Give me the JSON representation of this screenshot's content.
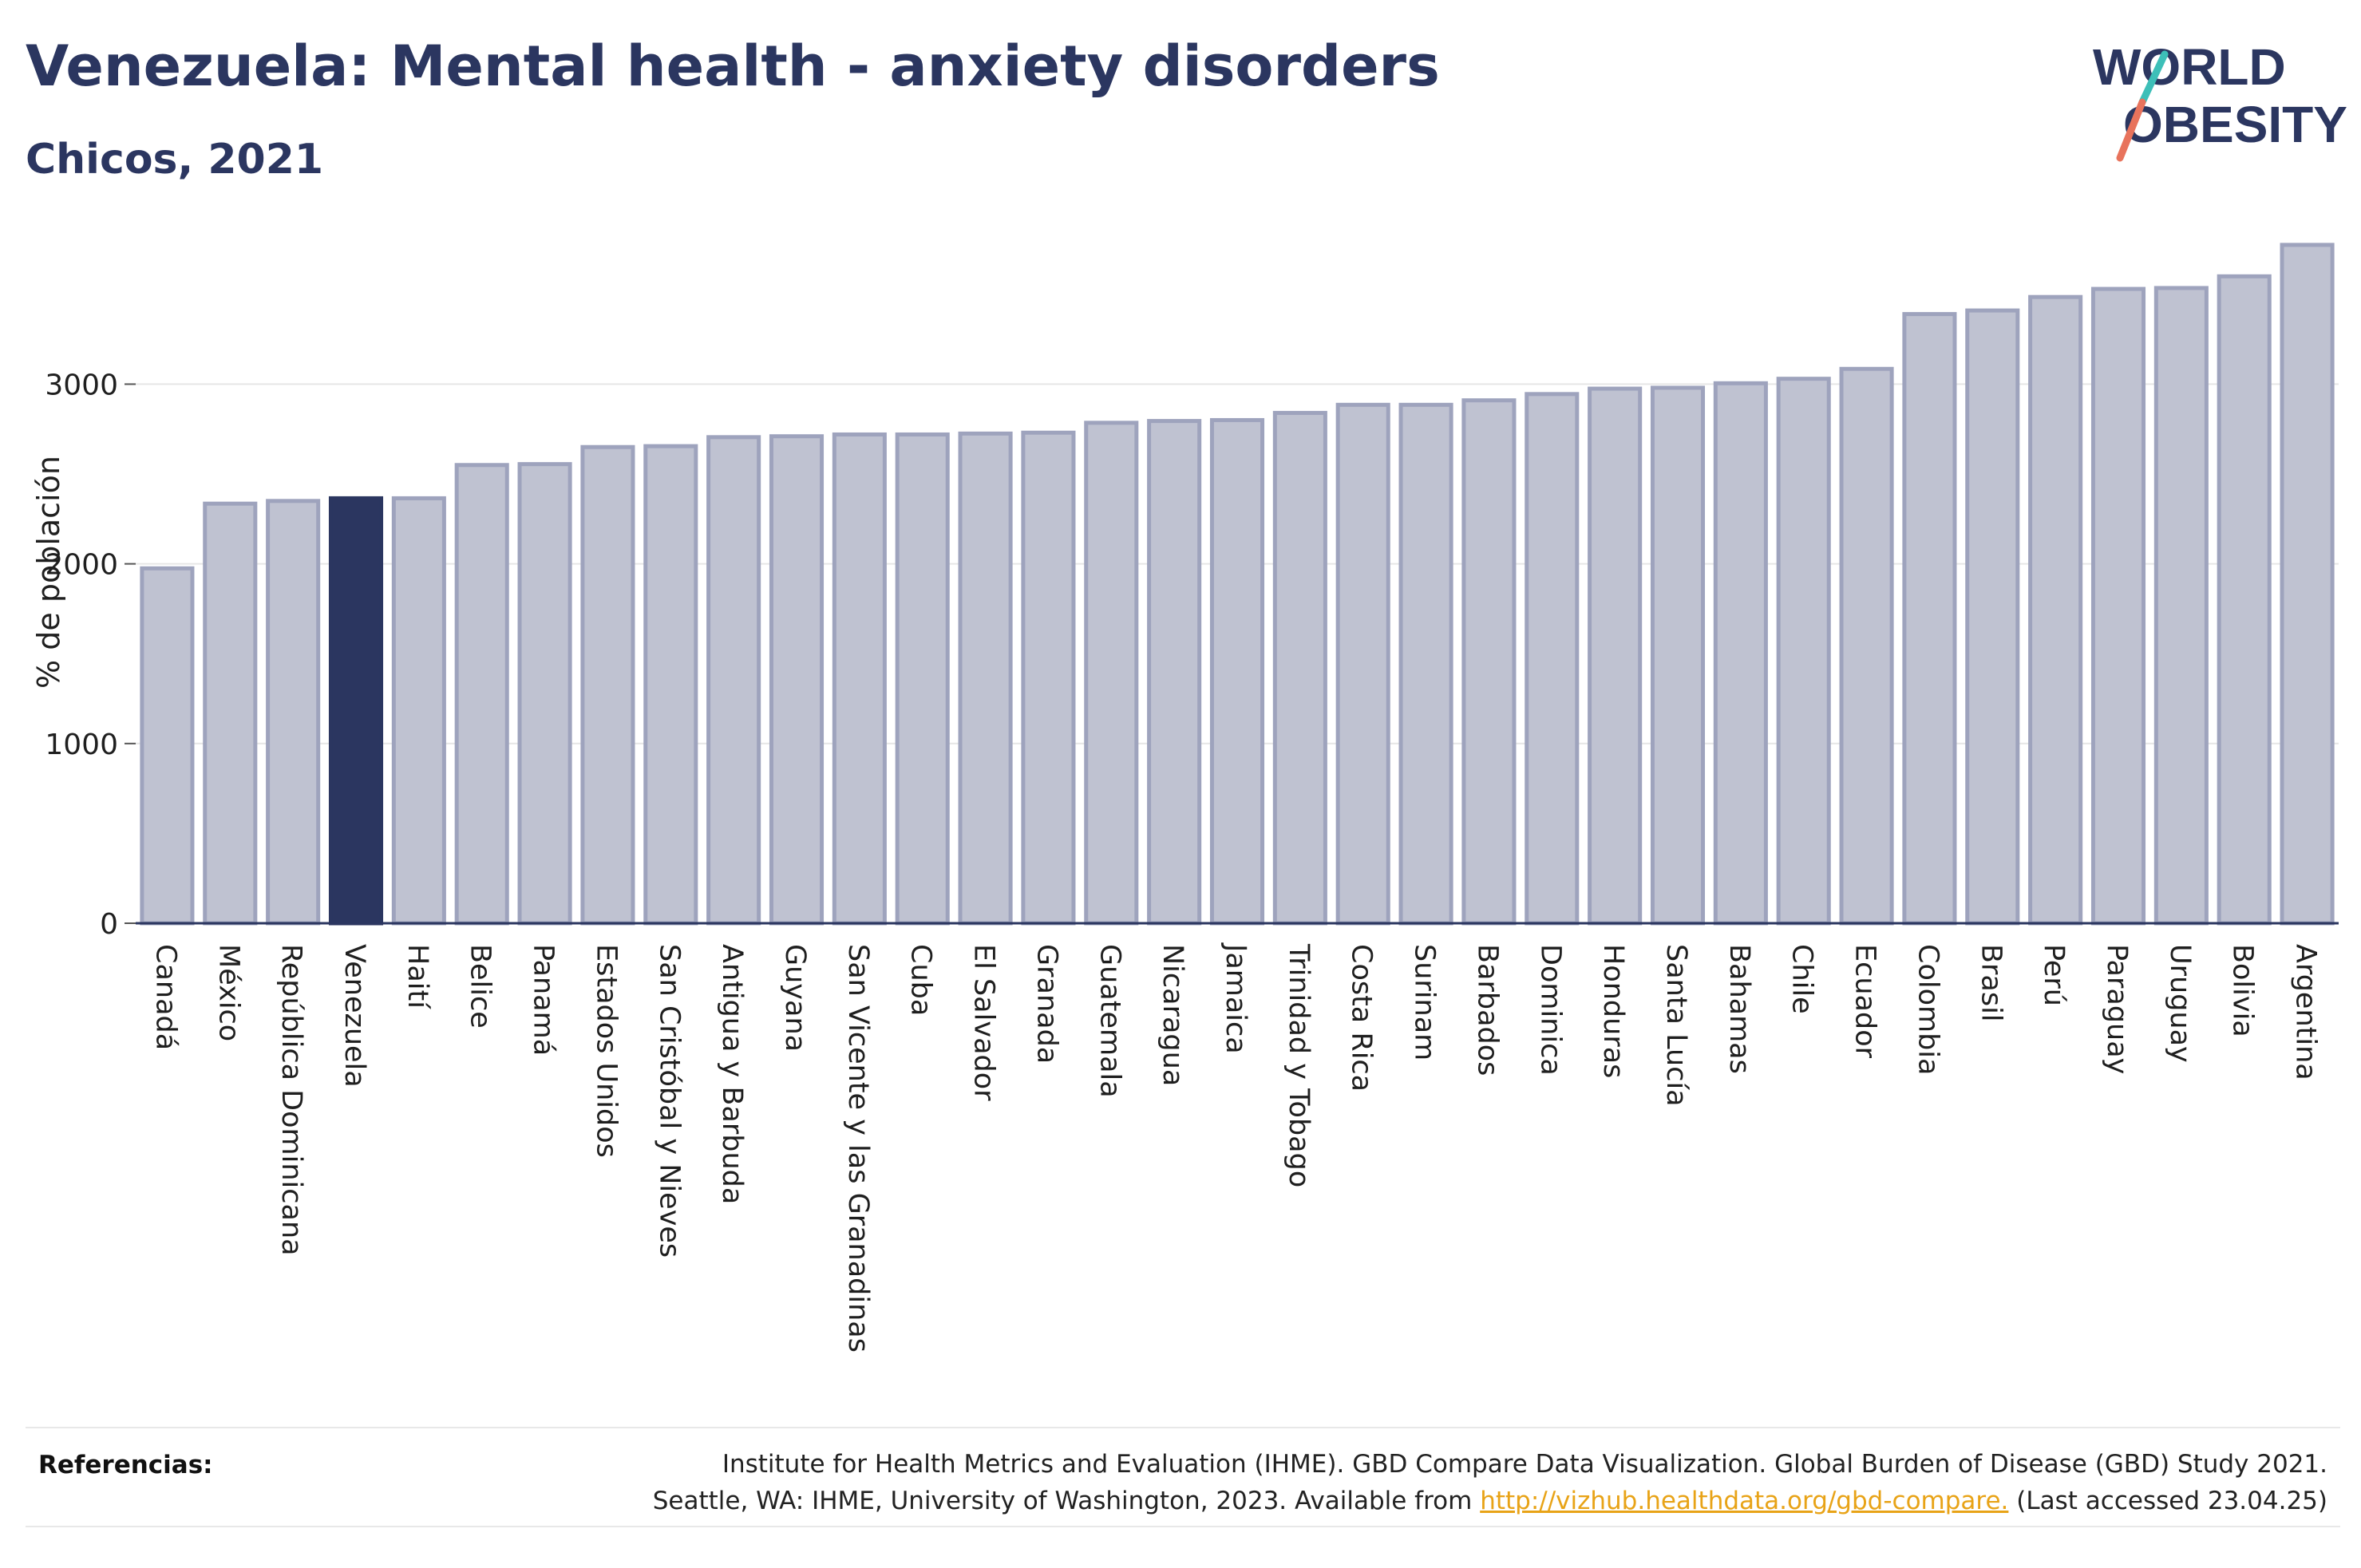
{
  "header": {
    "title": "Venezuela: Mental health - anxiety disorders",
    "subtitle": "Chicos, 2021"
  },
  "logo": {
    "line1": "WORLD",
    "line2": "OBESITY",
    "colors": {
      "text": "#2b3660",
      "slash_teal": "#3dbfb8",
      "slash_coral": "#e8735c"
    }
  },
  "colors": {
    "bar_fill": "#bfc2d1",
    "bar_stroke": "#9ea3bd",
    "highlight_fill": "#2b3660",
    "grid": "#e6e6e6",
    "axis": "#2b3660"
  },
  "chart_data": {
    "type": "bar",
    "title": "Venezuela: Mental health - anxiety disorders",
    "subtitle": "Chicos, 2021",
    "xlabel": "",
    "ylabel": "% de población",
    "ylim": [
      0,
      3850
    ],
    "yticks": [
      0,
      1000,
      2000,
      3000
    ],
    "grid": true,
    "highlight": "Venezuela",
    "categories": [
      "Canadá",
      "México",
      "República Dominicana",
      "Venezuela",
      "Haití",
      "Belice",
      "Panamá",
      "Estados Unidos",
      "San Cristóbal y Nieves",
      "Antigua y Barbuda",
      "Guyana",
      "San Vicente y las Granadinas",
      "Cuba",
      "El Salvador",
      "Granada",
      "Guatemala",
      "Nicaragua",
      "Jamaica",
      "Trinidad y Tobago",
      "Costa Rica",
      "Surinam",
      "Barbados",
      "Dominica",
      "Honduras",
      "Santa Lucía",
      "Bahamas",
      "Chile",
      "Ecuador",
      "Colombia",
      "Brasil",
      "Perú",
      "Paraguay",
      "Uruguay",
      "Bolivia",
      "Argentina"
    ],
    "values": [
      1975,
      2335,
      2350,
      2365,
      2365,
      2550,
      2555,
      2650,
      2655,
      2705,
      2710,
      2720,
      2720,
      2725,
      2730,
      2785,
      2795,
      2800,
      2840,
      2885,
      2885,
      2910,
      2945,
      2975,
      2980,
      3005,
      3030,
      3085,
      3390,
      3410,
      3485,
      3530,
      3535,
      3600,
      3775
    ]
  },
  "footer": {
    "label": "Referencias:",
    "line1": "Institute for Health Metrics and Evaluation (IHME). GBD Compare Data Visualization. Global Burden of Disease (GBD) Study 2021.",
    "line2_prefix": "Seattle, WA: IHME, University of Washington, 2023. Available from ",
    "link": "http://vizhub.healthdata.org/gbd-compare.",
    "line2_suffix": " (Last accessed 23.04.25)"
  }
}
